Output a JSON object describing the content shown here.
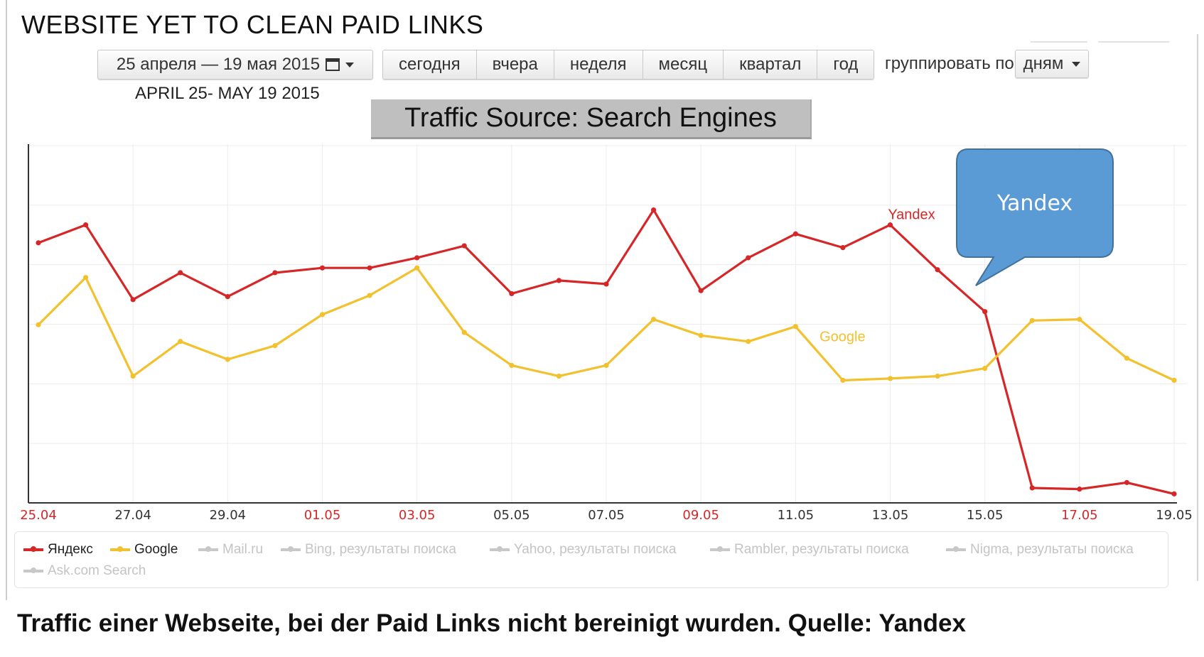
{
  "header": {
    "title": "WEBSITE YET TO CLEAN PAID LINKS",
    "date_range_label": "25 апреля — 19 мая 2015",
    "date_caption": "APRIL 25- MAY 19 2015",
    "periods": [
      "сегодня",
      "вчера",
      "неделя",
      "месяц",
      "квартал",
      "год"
    ],
    "group_by_label": "группировать по",
    "group_by_value": "дням"
  },
  "chart_title_box": "Traffic Source: Search Engines",
  "callout": {
    "text": "Yandex",
    "fill": "#5b9bd5",
    "stroke": "#41719c"
  },
  "caption": "Traffic einer Webseite, bei der Paid Links nicht bereinigt wurden. Quelle: Yandex",
  "legend": [
    {
      "label": "Яндекс",
      "color": "#d62728",
      "active": true
    },
    {
      "label": "Google",
      "color": "#f2c12e",
      "active": true
    },
    {
      "label": "Mail.ru",
      "color": "#c8c8c8",
      "active": false
    },
    {
      "label": "Bing, результаты поиска",
      "color": "#c8c8c8",
      "active": false
    },
    {
      "label": "Yahoo, результаты поиска",
      "color": "#c8c8c8",
      "active": false
    },
    {
      "label": "Rambler, результаты поиска",
      "color": "#c8c8c8",
      "active": false
    },
    {
      "label": "Nigma, результаты поиска",
      "color": "#c8c8c8",
      "active": false
    },
    {
      "label": "Ask.com Search",
      "color": "#c8c8c8",
      "active": false
    }
  ],
  "chart_data": {
    "type": "line",
    "title": "Traffic Source: Search Engines",
    "xlabel": "",
    "ylabel": "",
    "x_tick_labels": [
      "25.04",
      "27.04",
      "29.04",
      "01.05",
      "03.05",
      "05.05",
      "07.05",
      "09.05",
      "11.05",
      "13.05",
      "15.05",
      "17.05",
      "19.05"
    ],
    "weekend_ticks": [
      "25.04",
      "01.05",
      "03.05",
      "09.05",
      "17.05"
    ],
    "tick_colors": {
      "weekend": "#d62728",
      "weekday": "#333333"
    },
    "x": [
      "25.04",
      "26.04",
      "27.04",
      "28.04",
      "29.04",
      "30.04",
      "01.05",
      "02.05",
      "03.05",
      "04.05",
      "05.05",
      "06.05",
      "07.05",
      "08.05",
      "09.05",
      "10.05",
      "11.05",
      "12.05",
      "13.05",
      "14.05",
      "15.05",
      "16.05",
      "17.05",
      "18.05",
      "19.05"
    ],
    "ylim": [
      0,
      6
    ],
    "y_grid_lines": 6,
    "y_tick_labels_shown": false,
    "grid": true,
    "series": [
      {
        "name": "Yandex",
        "color": "#d62728",
        "values": [
          4.35,
          4.65,
          3.4,
          3.85,
          3.45,
          3.85,
          3.93,
          3.93,
          4.1,
          4.3,
          3.5,
          3.72,
          3.66,
          4.9,
          3.55,
          4.1,
          4.5,
          4.27,
          4.65,
          3.9,
          3.2,
          0.25,
          0.23,
          0.34,
          0.15
        ]
      },
      {
        "name": "Google",
        "color": "#f2c12e",
        "values": [
          2.98,
          3.77,
          2.12,
          2.7,
          2.4,
          2.63,
          3.15,
          3.47,
          3.93,
          2.85,
          2.3,
          2.12,
          2.3,
          3.07,
          2.8,
          2.7,
          2.95,
          2.05,
          2.08,
          2.12,
          2.25,
          3.05,
          3.07,
          2.42,
          2.05
        ]
      }
    ]
  }
}
